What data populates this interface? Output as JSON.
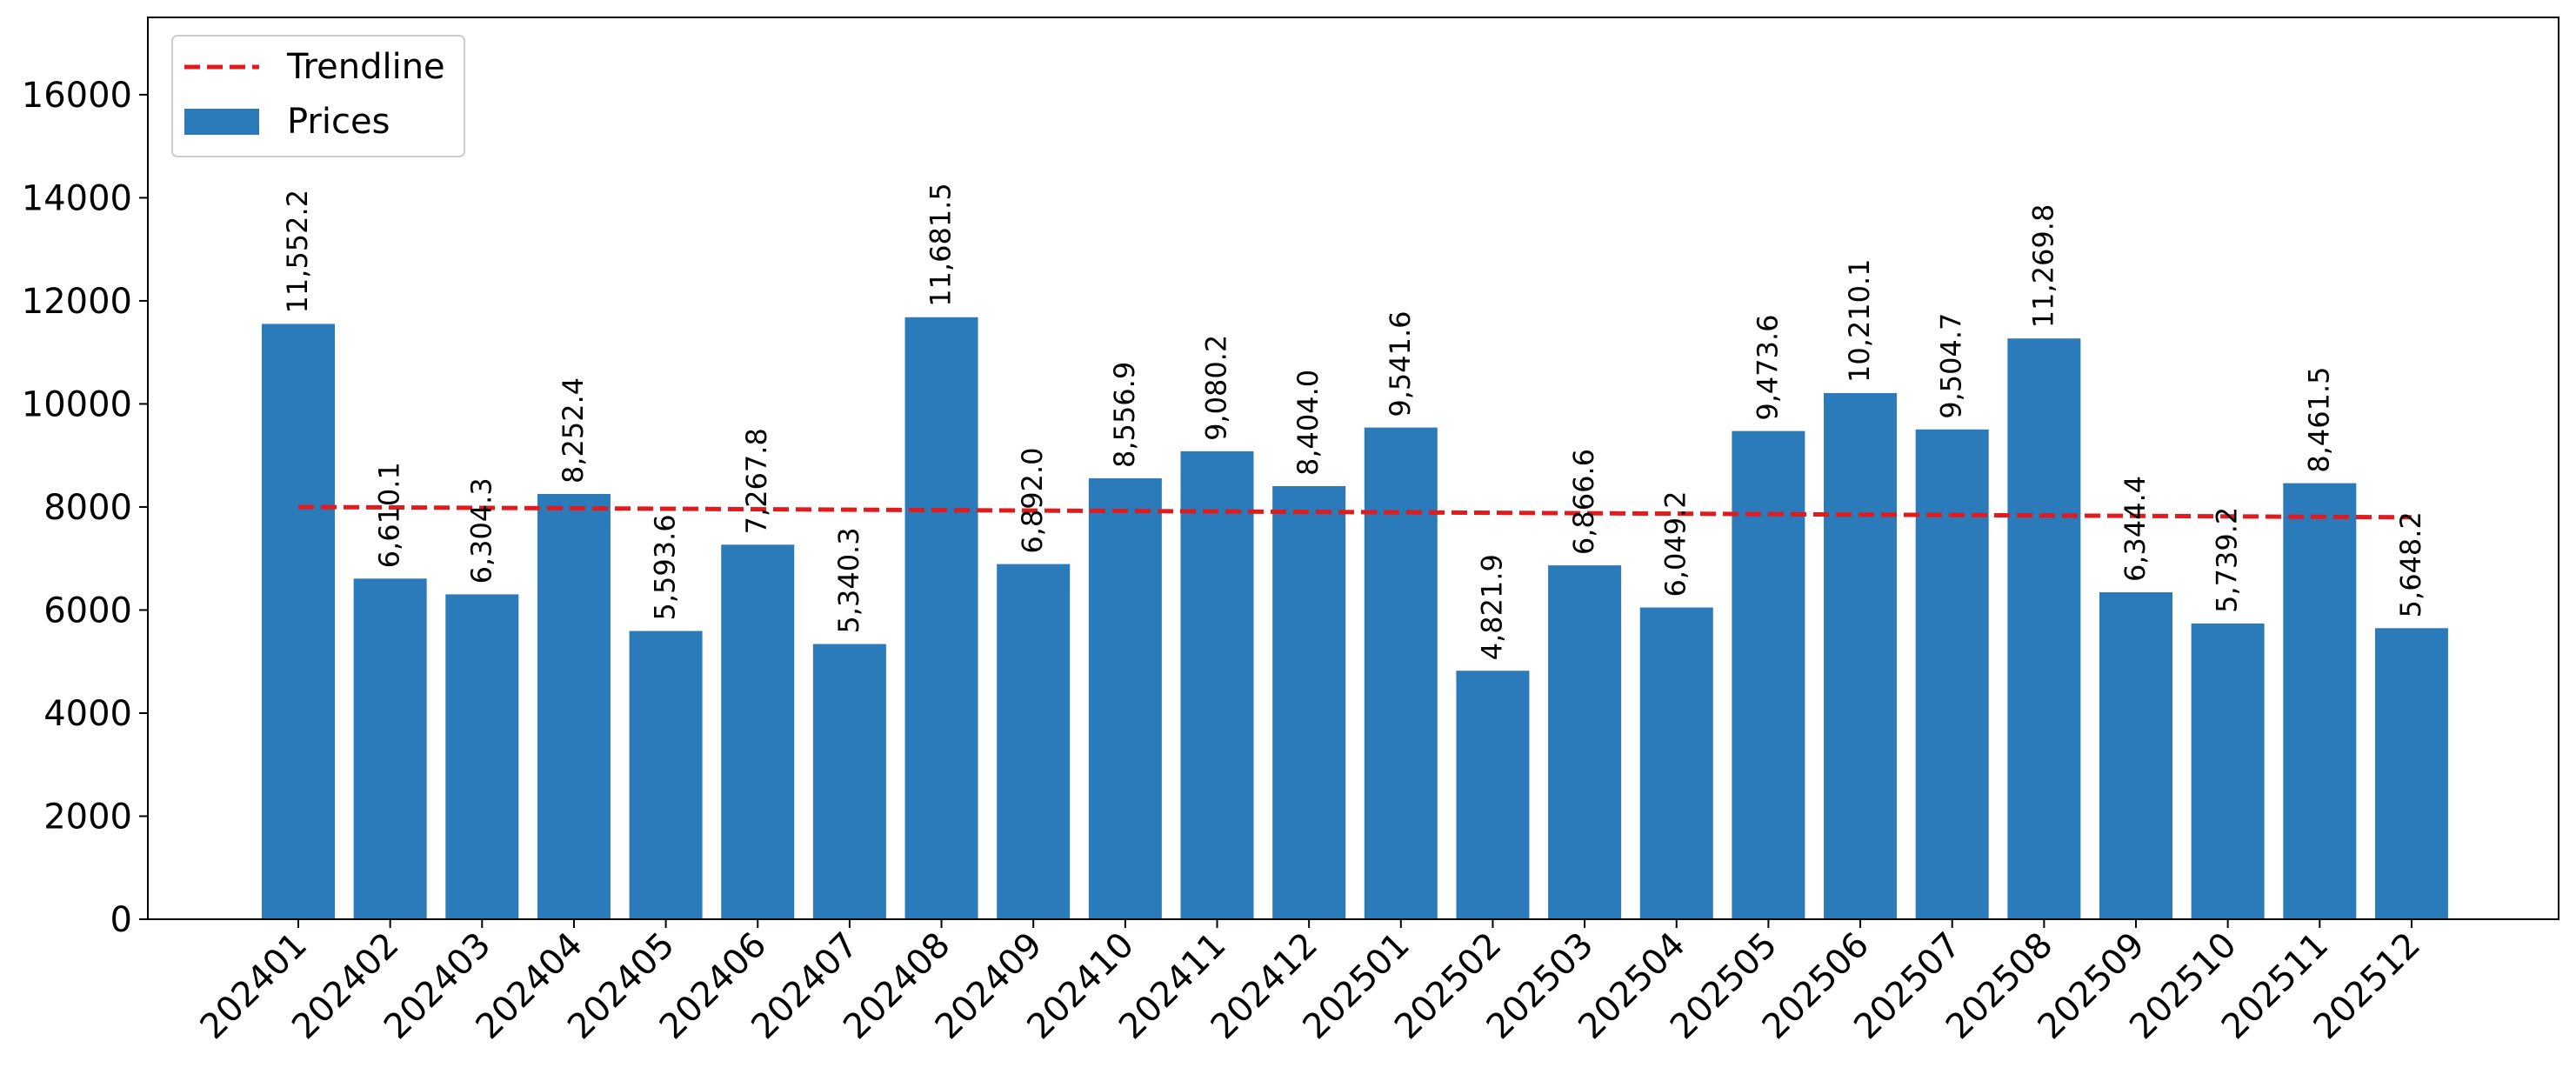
{
  "chart_data": {
    "type": "bar",
    "title": "",
    "xlabel": "",
    "ylabel": "",
    "categories": [
      "202401",
      "202402",
      "202403",
      "202404",
      "202405",
      "202406",
      "202407",
      "202408",
      "202409",
      "202410",
      "202411",
      "202412",
      "202501",
      "202502",
      "202503",
      "202504",
      "202505",
      "202506",
      "202507",
      "202508",
      "202509",
      "202510",
      "202511",
      "202512"
    ],
    "series": [
      {
        "name": "Prices",
        "values": [
          11552.2,
          6610.1,
          6304.3,
          8252.4,
          5593.6,
          7267.8,
          5340.3,
          11681.5,
          6892.0,
          8556.9,
          9080.2,
          8404.0,
          9541.6,
          4821.9,
          6866.6,
          6049.2,
          9473.6,
          10210.1,
          9504.7,
          11269.8,
          6344.4,
          5739.2,
          8461.5,
          5648.2
        ],
        "labels": [
          "11,552.2",
          "6,610.1",
          "6,304.3",
          "8,252.4",
          "5,593.6",
          "7,267.8",
          "5,340.3",
          "11,681.5",
          "6,892.0",
          "8,556.9",
          "9,080.2",
          "8,404.0",
          "9,541.6",
          "4,821.9",
          "6,866.6",
          "6,049.2",
          "9,473.6",
          "10,210.1",
          "9,504.7",
          "11,269.8",
          "6,344.4",
          "5,739.2",
          "8,461.5",
          "5,648.2"
        ],
        "color": "#2b7bba"
      },
      {
        "name": "Trendline",
        "type": "line",
        "style": "dashed",
        "color": "#e31a1c",
        "start_value": 8000,
        "end_value": 7800
      }
    ],
    "ylim": [
      0,
      17500
    ],
    "yticks": [
      0,
      2000,
      4000,
      6000,
      8000,
      10000,
      12000,
      14000,
      16000
    ],
    "xtick_rotation": 45,
    "grid": false,
    "legend": {
      "position": "top-left",
      "entries": [
        {
          "label": "Trendline",
          "kind": "dashed-line",
          "color": "#e31a1c"
        },
        {
          "label": "Prices",
          "kind": "patch",
          "color": "#2b7bba"
        }
      ]
    }
  }
}
